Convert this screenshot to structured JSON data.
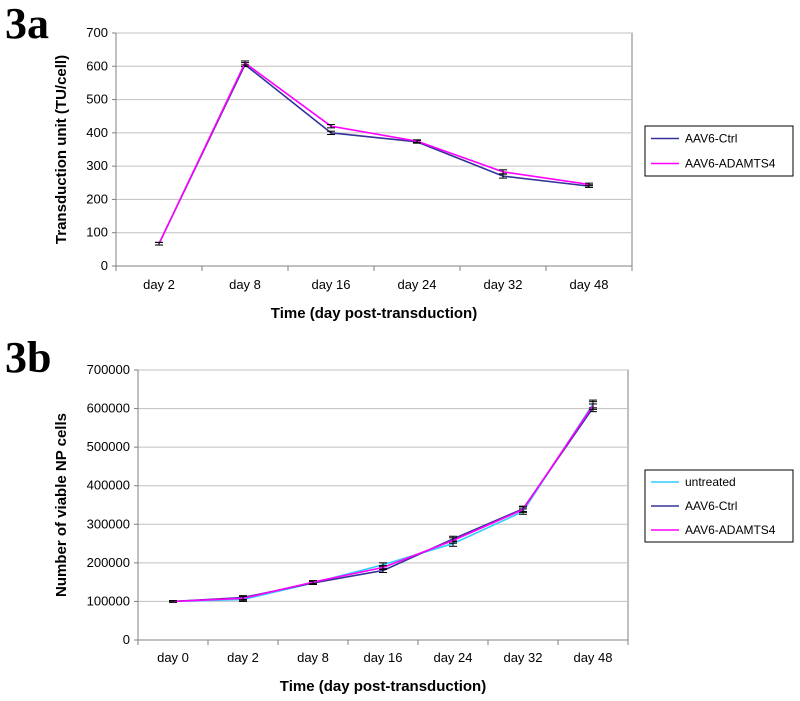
{
  "chart_data": [
    {
      "panel": "3a",
      "type": "line",
      "title": "",
      "xlabel": "Time (day post-transduction)",
      "ylabel": "Transduction unit (TU/cell)",
      "ylim": [
        0,
        700
      ],
      "yticks": [
        0,
        100,
        200,
        300,
        400,
        500,
        600,
        700
      ],
      "categories": [
        "day 2",
        "day 8",
        "day 16",
        "day 24",
        "day 32",
        "day 48"
      ],
      "grid": true,
      "legend_position": "right",
      "series": [
        {
          "name": "AAV6-Ctrl",
          "color": "#333399",
          "values": [
            67,
            605,
            400,
            373,
            270,
            240
          ],
          "errors": [
            4,
            6,
            5,
            4,
            6,
            4
          ]
        },
        {
          "name": "AAV6-ADAMTS4",
          "color": "#ff00ff",
          "values": [
            67,
            610,
            420,
            375,
            283,
            245
          ],
          "errors": [
            4,
            6,
            5,
            4,
            6,
            4
          ]
        }
      ]
    },
    {
      "panel": "3b",
      "type": "line",
      "title": "",
      "xlabel": "Time (day post-transduction)",
      "ylabel": "Number of viable NP cells",
      "ylim": [
        0,
        700000
      ],
      "yticks": [
        0,
        100000,
        200000,
        300000,
        400000,
        500000,
        600000,
        700000
      ],
      "categories": [
        "day 0",
        "day 2",
        "day 8",
        "day 16",
        "day 24",
        "day 32",
        "day 48"
      ],
      "grid": true,
      "legend_position": "right",
      "series": [
        {
          "name": "untreated",
          "color": "#33ccff",
          "values": [
            100000,
            105000,
            148000,
            195000,
            250000,
            333000,
            612000
          ],
          "errors": [
            2000,
            5000,
            4000,
            5000,
            7000,
            7000,
            10000
          ]
        },
        {
          "name": "AAV6-Ctrl",
          "color": "#333399",
          "values": [
            100000,
            110000,
            148000,
            180000,
            262000,
            340000,
            602000
          ],
          "errors": [
            2000,
            5000,
            4000,
            5000,
            7000,
            7000,
            10000
          ]
        },
        {
          "name": "AAV6-ADAMTS4",
          "color": "#ff00ff",
          "values": [
            100000,
            108000,
            150000,
            188000,
            258000,
            338000,
            608000
          ],
          "errors": [
            2000,
            5000,
            4000,
            5000,
            7000,
            7000,
            10000
          ]
        }
      ]
    }
  ]
}
